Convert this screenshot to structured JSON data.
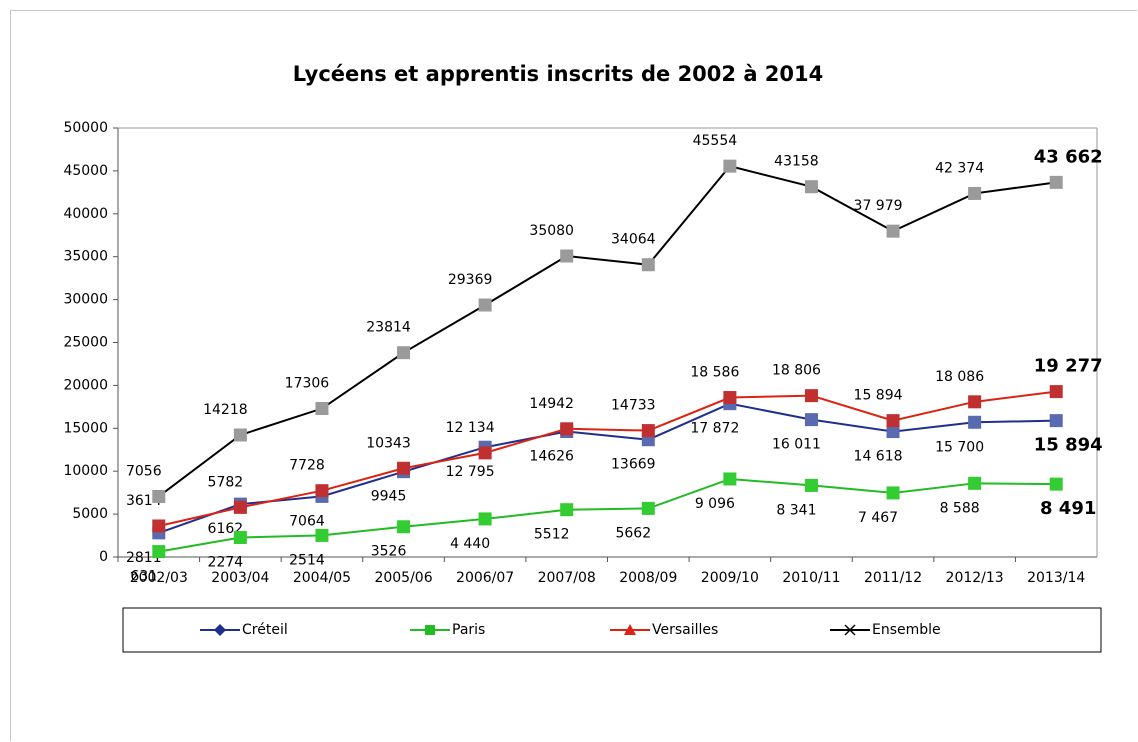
{
  "chart_data": {
    "type": "line",
    "title": "Lycéens et apprentis inscrits de 2002 à 2014",
    "categories": [
      "2002/03",
      "2003/04",
      "2004/05",
      "2005/06",
      "2006/07",
      "2007/08",
      "2008/09",
      "2009/10",
      "2010/11",
      "2011/12",
      "2012/13",
      "2013/14"
    ],
    "series": [
      {
        "name": "Créteil",
        "color": "#1f2f8f",
        "marker_color": "#5a6ab0",
        "label_side": "below",
        "values": [
          2811,
          6162,
          7064,
          9945,
          12795,
          14626,
          13669,
          17872,
          16011,
          14618,
          15700,
          15894
        ],
        "value_labels": [
          "2811",
          "6162",
          "7064",
          "9945",
          "12 795",
          "14626",
          "13669",
          "17 872",
          "16 011",
          "14 618",
          "15 700",
          "15 894"
        ]
      },
      {
        "name": "Paris",
        "color": "#22bb22",
        "marker_color": "#33cc33",
        "label_side": "below",
        "values": [
          631,
          2274,
          2514,
          3526,
          4440,
          5512,
          5662,
          9096,
          8341,
          7467,
          8588,
          8491
        ],
        "value_labels": [
          "631",
          "2274",
          "2514",
          "3526",
          "4 440",
          "5512",
          "5662",
          "9 096",
          "8 341",
          "7 467",
          "8 588",
          "8 491"
        ]
      },
      {
        "name": "Versailles",
        "color": "#dd2211",
        "marker_color": "#c03030",
        "label_side": "above",
        "values": [
          3614,
          5782,
          7728,
          10343,
          12134,
          14942,
          14733,
          18586,
          18806,
          15894,
          18086,
          19277
        ],
        "value_labels": [
          "3614",
          "5782",
          "7728",
          "10343",
          "12 134",
          "14942",
          "14733",
          "18 586",
          "18 806",
          "15 894",
          "18 086",
          "19 277"
        ]
      },
      {
        "name": "Ensemble",
        "color": "#000000",
        "marker_color": "#9a9a9a",
        "label_side": "above",
        "values": [
          7056,
          14218,
          17306,
          23814,
          29369,
          35080,
          34064,
          45554,
          43158,
          37979,
          42374,
          43662
        ],
        "value_labels": [
          "7056",
          "14218",
          "17306",
          "23814",
          "29369",
          "35080",
          "34064",
          "45554",
          "43158",
          "37 979",
          "42 374",
          "43 662"
        ]
      }
    ],
    "ylim": [
      0,
      50000
    ],
    "yticks": [
      0,
      5000,
      10000,
      15000,
      20000,
      25000,
      30000,
      35000,
      40000,
      45000,
      50000
    ],
    "grid": false,
    "legend": "bottom"
  }
}
